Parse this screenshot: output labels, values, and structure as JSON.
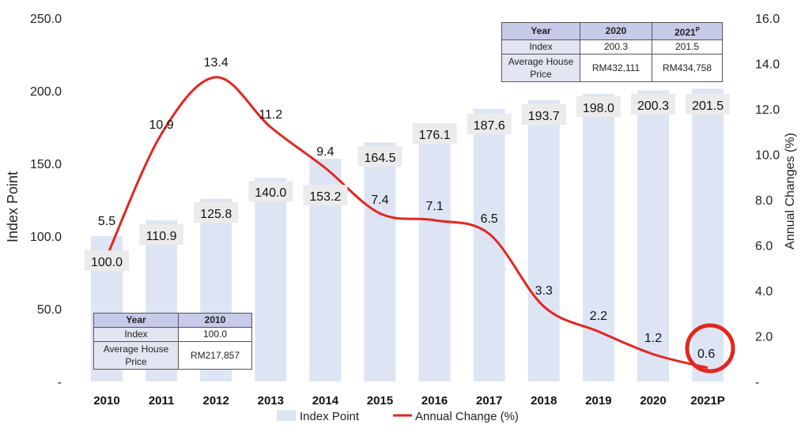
{
  "chart_data": {
    "type": "bar+line",
    "categories": [
      "2010",
      "2011",
      "2012",
      "2013",
      "2014",
      "2015",
      "2016",
      "2017",
      "2018",
      "2019",
      "2020",
      "2021P"
    ],
    "series": [
      {
        "name": "Index Point",
        "type": "bar",
        "axis": "left",
        "values": [
          100.0,
          110.9,
          125.8,
          140.0,
          153.2,
          164.5,
          176.1,
          187.6,
          193.7,
          198.0,
          200.3,
          201.5
        ],
        "labels": [
          "100.0",
          "110.9",
          "125.8",
          "140.0",
          "153.2",
          "164.5",
          "176.1",
          "187.6",
          "193.7",
          "198.0",
          "200.3",
          "201.5"
        ]
      },
      {
        "name": "Annual Change (%)",
        "type": "line",
        "axis": "right",
        "values": [
          5.5,
          10.9,
          13.4,
          11.2,
          9.4,
          7.4,
          7.1,
          6.5,
          3.3,
          2.2,
          1.2,
          0.6
        ],
        "labels": [
          "5.5",
          "10.9",
          "13.4",
          "11.2",
          "9.4",
          "7.4",
          "7.1",
          "6.5",
          "3.3",
          "2.2",
          "1.2",
          "0.6"
        ]
      }
    ],
    "ylabel_left": "Index Point",
    "ylabel_right": "Annual Changes (%)",
    "ylim_left": [
      0,
      250
    ],
    "ylim_right": [
      0,
      16
    ],
    "yticks_left": [
      "-",
      "50.0",
      "100.0",
      "150.0",
      "200.0",
      "250.0"
    ],
    "yticks_right": [
      "-",
      "2.0",
      "4.0",
      "6.0",
      "8.0",
      "10.0",
      "12.0",
      "14.0",
      "16.0"
    ],
    "legend": [
      "Index Point",
      "Annual Change (%)"
    ],
    "highlight": {
      "category": "2021P",
      "series": "Annual Change (%)"
    },
    "colors": {
      "bar": "#dde5f4",
      "line": "#e3261f",
      "label_bg": "#ebebeb",
      "highlight": "#e3261f"
    }
  },
  "table_2010": {
    "header": [
      "Year",
      "2010"
    ],
    "rows": [
      [
        "Index",
        "100.0"
      ],
      [
        "Average House Price",
        "RM217,857"
      ]
    ]
  },
  "table_2021": {
    "header": [
      "Year",
      "2020",
      "2021",
      "P"
    ],
    "rows": [
      [
        "Index",
        "200.3",
        "201.5"
      ],
      [
        "Average House Price",
        "RM432,111",
        "RM434,758"
      ]
    ]
  }
}
